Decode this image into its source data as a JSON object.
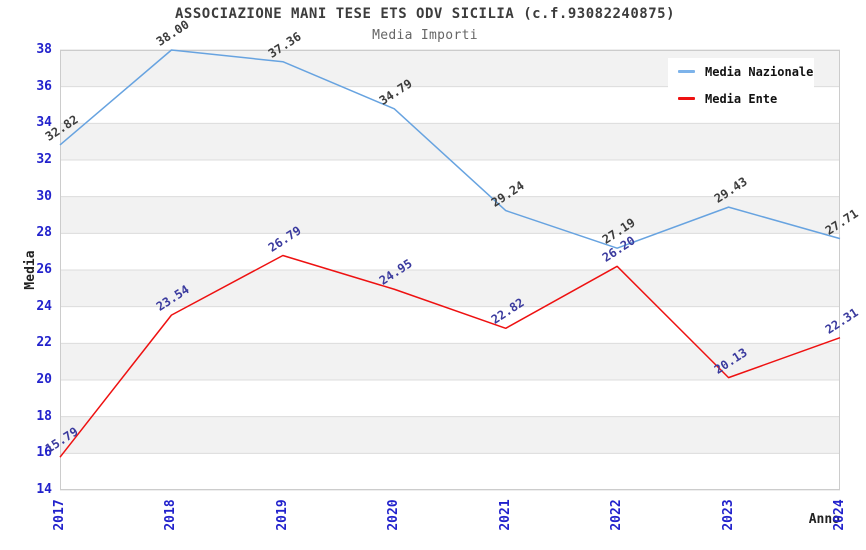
{
  "title": "ASSOCIAZIONE MANI TESE ETS ODV SICILIA (c.f.93082240875)",
  "subtitle": "Media Importi",
  "axes": {
    "ylabel": "Media",
    "xlabel": "Anno"
  },
  "colors": {
    "nazionale_line": "#67a3e0",
    "nazionale_swatch": "#7db3ea",
    "ente_line": "#ee1111",
    "nazionale_label_text": "#3c3c3c",
    "ente_label_text": "#3a3a9e",
    "tick_text": "#2222cc",
    "band_gray": "#f2f2f2",
    "grid_line": "#dcdcdc",
    "plot_border": "#cccccc"
  },
  "chart_data": {
    "type": "line",
    "title": "ASSOCIAZIONE MANI TESE ETS ODV SICILIA (c.f.93082240875)",
    "subtitle": "Media Importi",
    "xlabel": "Anno",
    "ylabel": "Media",
    "categories": [
      "2017",
      "2018",
      "2019",
      "2020",
      "2021",
      "2022",
      "2023",
      "2024"
    ],
    "series": [
      {
        "name": "Media Nazionale",
        "color": "#67a3e0",
        "label_color": "#3c3c3c",
        "values": [
          32.82,
          38.0,
          37.36,
          34.79,
          29.24,
          27.19,
          29.43,
          27.71
        ],
        "labels": [
          "32.82",
          "38.00",
          "37.36",
          "34.79",
          "29.24",
          "27.19",
          "29.43",
          "27.71"
        ]
      },
      {
        "name": "Media Ente",
        "color": "#ee1111",
        "label_color": "#3a3a9e",
        "values": [
          15.79,
          23.54,
          26.79,
          24.95,
          22.82,
          26.2,
          20.13,
          22.31
        ],
        "labels": [
          "15.79",
          "23.54",
          "26.79",
          "24.95",
          "22.82",
          "26.20",
          "20.13",
          "22.31"
        ]
      }
    ],
    "ylim": [
      14,
      38
    ],
    "yticks": [
      38,
      36,
      34,
      32,
      30,
      28,
      26,
      24,
      22,
      20,
      18,
      16,
      14
    ],
    "grid": "horizontal gridlines with alternating gray/white bands",
    "legend_position": "top-right"
  }
}
